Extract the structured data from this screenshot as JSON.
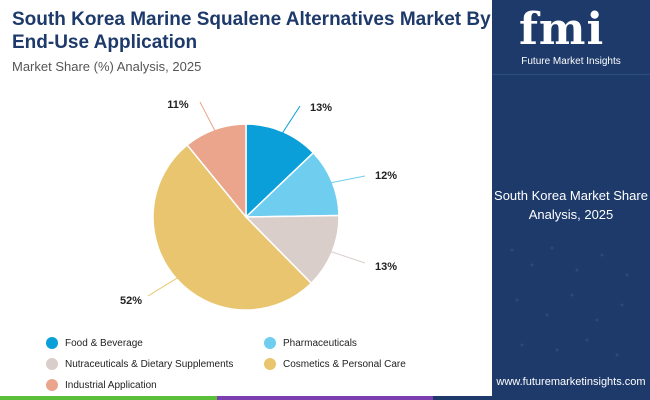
{
  "header": {
    "title": "South Korea Marine Squalene Alternatives Market By End-Use Application",
    "subtitle": "Market Share (%) Analysis, 2025"
  },
  "brand": {
    "logo_text": "fmi",
    "logo_subtext": "Future Market Insights",
    "website": "www.futuremarketinsights.com",
    "panel_color": "#1d3a6b"
  },
  "side_panel": {
    "text": "South Korea Market Share Analysis, 2025"
  },
  "chart_data": {
    "type": "pie",
    "title": "South Korea Marine Squalene Alternatives Market By End-Use Application",
    "subtitle": "Market Share (%) Analysis, 2025",
    "categories": [
      "Food & Beverage",
      "Pharmaceuticals",
      "Nutraceuticals & Dietary Supplements",
      "Cosmetics & Personal Care",
      "Industrial Application"
    ],
    "values": [
      13,
      12,
      13,
      52,
      11
    ],
    "labels": [
      "13%",
      "12%",
      "13%",
      "52%",
      "11%"
    ],
    "colors": [
      "#0a9fd8",
      "#6fcdf0",
      "#d9ceca",
      "#e8c56e",
      "#eaa58c"
    ],
    "start_angle_deg": 0,
    "direction": "clockwise",
    "legend_position": "bottom"
  },
  "bottom_bar_colors": [
    "#5bbf3a",
    "#7b3fb0",
    "#1d3a6b"
  ]
}
